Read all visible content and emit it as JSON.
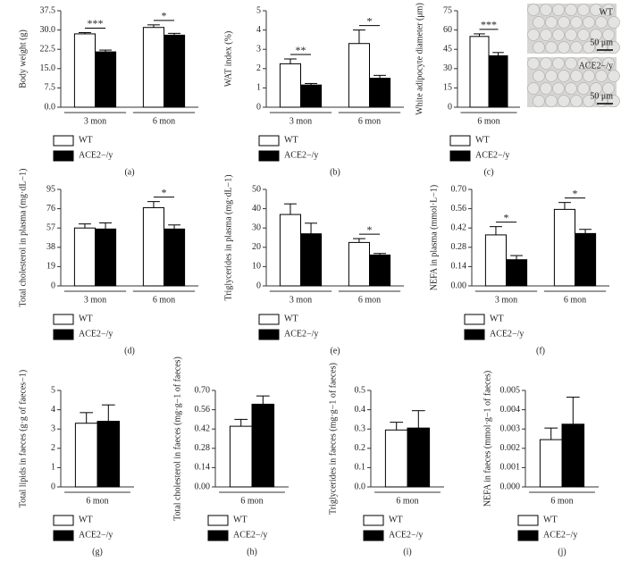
{
  "chart_data": [
    {
      "type": "bar",
      "label": "(a)",
      "y_label": "Body weight (g)",
      "categories": [
        "3 mon",
        "6 mon"
      ],
      "series": [
        {
          "name": "WT",
          "color": "#ffffff",
          "values": [
            28.5,
            31.0
          ],
          "errors": [
            0.5,
            1.0
          ]
        },
        {
          "name": "ACE2−/y",
          "color": "#000000",
          "values": [
            21.5,
            28.0
          ],
          "errors": [
            0.7,
            0.7
          ]
        }
      ],
      "significance": [
        "***",
        "*"
      ],
      "ylim": [
        0,
        37.5
      ],
      "yticks": [
        {
          "value": 0,
          "label": "0.0"
        },
        7.5,
        {
          "value": 15,
          "label": "15.0"
        },
        22.5,
        {
          "value": 30,
          "label": "30.0"
        },
        37.5
      ]
    },
    {
      "type": "bar",
      "label": "(b)",
      "y_label": "WAT index (%)",
      "categories": [
        "3 mon",
        "6 mon"
      ],
      "series": [
        {
          "name": "WT",
          "color": "#ffffff",
          "values": [
            2.25,
            3.3
          ],
          "errors": [
            0.25,
            0.7
          ]
        },
        {
          "name": "ACE2−/y",
          "color": "#000000",
          "values": [
            1.15,
            1.5
          ],
          "errors": [
            0.08,
            0.15
          ]
        }
      ],
      "significance": [
        "**",
        "*"
      ],
      "ylim": [
        0,
        5
      ],
      "yticks": [
        0,
        1,
        2,
        3,
        4,
        5
      ]
    },
    {
      "type": "bar",
      "label": "(c)",
      "y_label": "White adipocyte diameter (μm)",
      "categories": [
        "6 mon"
      ],
      "series": [
        {
          "name": "WT",
          "color": "#ffffff",
          "values": [
            55
          ],
          "errors": [
            2
          ]
        },
        {
          "name": "ACE2−/y",
          "color": "#000000",
          "values": [
            40
          ],
          "errors": [
            2.5
          ]
        }
      ],
      "significance": [
        "***"
      ],
      "ylim": [
        0,
        75
      ],
      "yticks": [
        0,
        15,
        30,
        45,
        60,
        75
      ],
      "images": [
        {
          "label": "WT",
          "scale": "50 μm"
        },
        {
          "label": "ACE2−/y",
          "scale": "50 μm"
        }
      ]
    },
    {
      "type": "bar",
      "label": "(d)",
      "y_label": "Total cholesterol in plasma (mg·dL−1)",
      "categories": [
        "3 mon",
        "6 mon"
      ],
      "series": [
        {
          "name": "WT",
          "color": "#ffffff",
          "values": [
            57,
            77
          ],
          "errors": [
            4,
            6
          ]
        },
        {
          "name": "ACE2−/y",
          "color": "#000000",
          "values": [
            56,
            56
          ],
          "errors": [
            6,
            4
          ]
        }
      ],
      "significance": [
        null,
        "*"
      ],
      "ylim": [
        0,
        95
      ],
      "yticks": [
        0,
        19,
        38,
        57,
        76,
        95
      ]
    },
    {
      "type": "bar",
      "label": "(e)",
      "y_label": "Triglycerides in plasma (mg·dL−1)",
      "categories": [
        "3 mon",
        "6 mon"
      ],
      "series": [
        {
          "name": "WT",
          "color": "#ffffff",
          "values": [
            37,
            22.5
          ],
          "errors": [
            5.5,
            2
          ]
        },
        {
          "name": "ACE2−/y",
          "color": "#000000",
          "values": [
            27,
            16
          ],
          "errors": [
            5.5,
            0.8
          ]
        }
      ],
      "significance": [
        null,
        "*"
      ],
      "ylim": [
        0,
        50
      ],
      "yticks": [
        0,
        10,
        20,
        30,
        40,
        50
      ]
    },
    {
      "type": "bar",
      "label": "(f)",
      "y_label": "NEFA in plasma (mmol·L−1)",
      "categories": [
        "3 mon",
        "6 mon"
      ],
      "series": [
        {
          "name": "WT",
          "color": "#ffffff",
          "values": [
            0.37,
            0.555
          ],
          "errors": [
            0.06,
            0.05
          ]
        },
        {
          "name": "ACE2−/y",
          "color": "#000000",
          "values": [
            0.19,
            0.38
          ],
          "errors": [
            0.03,
            0.03
          ]
        }
      ],
      "significance": [
        "*",
        "*"
      ],
      "ylim": [
        0,
        0.7
      ],
      "yticks": [
        {
          "value": 0,
          "label": "0.00"
        },
        0.14,
        0.28,
        0.42,
        0.56,
        {
          "value": 0.7,
          "label": "0.70"
        }
      ]
    },
    {
      "type": "bar",
      "label": "(g)",
      "y_label": "Total lipids in faeces (g·g of faeces−1)",
      "categories": [
        "6 mon"
      ],
      "series": [
        {
          "name": "WT",
          "color": "#ffffff",
          "values": [
            3.3
          ],
          "errors": [
            0.55
          ]
        },
        {
          "name": "ACE2−/y",
          "color": "#000000",
          "values": [
            3.4
          ],
          "errors": [
            0.85
          ]
        }
      ],
      "ylim": [
        0,
        5
      ],
      "yticks": [
        0,
        1,
        2,
        3,
        4,
        5
      ]
    },
    {
      "type": "bar",
      "label": "(h)",
      "y_label": "Total cholesterol in faeces (mg·g−1 of faeces)",
      "categories": [
        "6 mon"
      ],
      "series": [
        {
          "name": "WT",
          "color": "#ffffff",
          "values": [
            0.44
          ],
          "errors": [
            0.05
          ]
        },
        {
          "name": "ACE2−/y",
          "color": "#000000",
          "values": [
            0.6
          ],
          "errors": [
            0.06
          ]
        }
      ],
      "ylim": [
        0,
        0.7
      ],
      "yticks": [
        {
          "value": 0,
          "label": "0.00"
        },
        0.14,
        0.28,
        0.42,
        0.56,
        {
          "value": 0.7,
          "label": "0.70"
        }
      ]
    },
    {
      "type": "bar",
      "label": "(i)",
      "y_label": "Triglycerides in faeces (mg·g−1 of faeces)",
      "categories": [
        "6 mon"
      ],
      "series": [
        {
          "name": "WT",
          "color": "#ffffff",
          "values": [
            0.295
          ],
          "errors": [
            0.04
          ]
        },
        {
          "name": "ACE2−/y",
          "color": "#000000",
          "values": [
            0.305
          ],
          "errors": [
            0.09
          ]
        }
      ],
      "ylim": [
        0,
        0.5
      ],
      "yticks": [
        {
          "value": 0,
          "label": "0.0"
        },
        0.1,
        0.2,
        0.3,
        0.4,
        0.5
      ]
    },
    {
      "type": "bar",
      "label": "(j)",
      "y_label": "NEFA in faeces (mmol·g−1 of faeces)",
      "categories": [
        "6 mon"
      ],
      "series": [
        {
          "name": "WT",
          "color": "#ffffff",
          "values": [
            0.00245
          ],
          "errors": [
            0.0006
          ]
        },
        {
          "name": "ACE2−/y",
          "color": "#000000",
          "values": [
            0.00325
          ],
          "errors": [
            0.0014
          ]
        }
      ],
      "ylim": [
        0,
        0.005
      ],
      "yticks": [
        {
          "value": 0,
          "label": "0.000"
        },
        0.001,
        0.002,
        0.003,
        0.004,
        0.005
      ]
    }
  ]
}
